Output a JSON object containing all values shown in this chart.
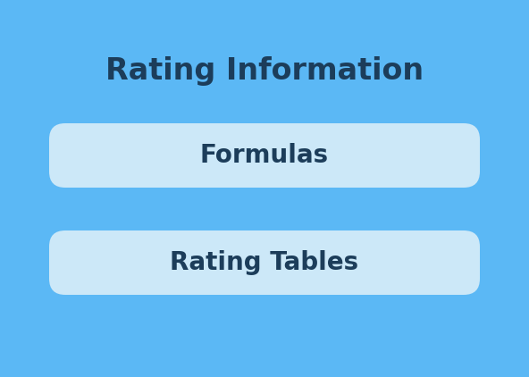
{
  "title": "Rating Information",
  "title_color": "#1c3d5a",
  "title_fontsize": 24,
  "title_fontweight": "bold",
  "background_color": "#5bb8f5",
  "outer_box_color": "#5bb8f5",
  "outer_box_edge_color": "#5bb8f5",
  "inner_box_color": "#cce8f8",
  "inner_box_edge_color": "#cce8f8",
  "inner_text_color": "#1c3d5a",
  "inner_text_fontsize": 20,
  "inner_text_fontweight": "bold",
  "items": [
    "Formulas",
    "Rating Tables"
  ],
  "fig_bg": "#5bb8f5",
  "outer_bg": "#5bb8f5"
}
